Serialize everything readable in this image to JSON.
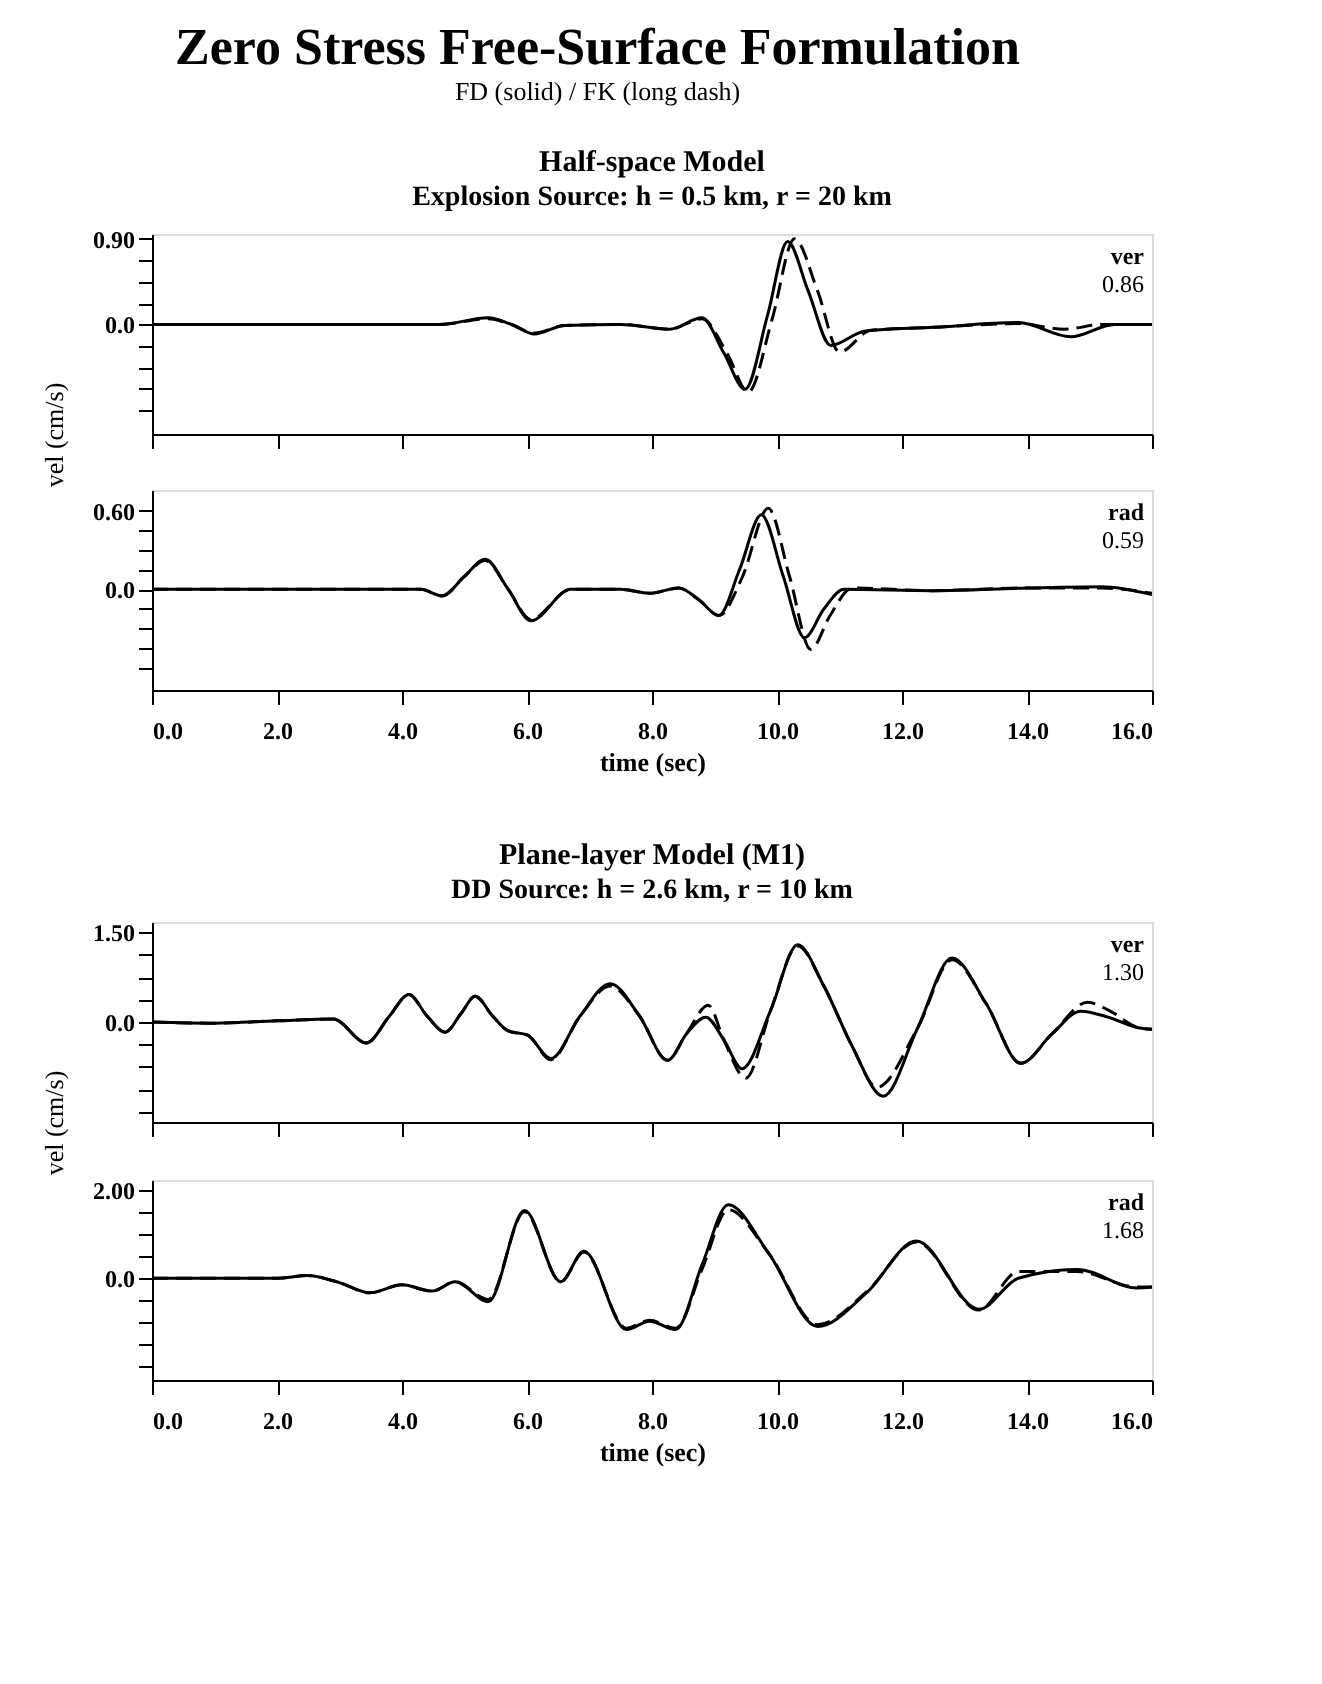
{
  "chart_data": [
    {
      "type": "line",
      "title": "Half-space Model",
      "subtitle": "Explosion Source: h = 0.5 km, r = 20 km",
      "ylabel": "vel (cm/s)",
      "annotations": [
        "Zero Stress Free-Surface Formulation",
        "FD (solid) / FK (long dash)",
        "ver",
        "0.86"
      ],
      "xlim": [
        0,
        16
      ],
      "xticks": [
        {
          "value": 0,
          "label": null
        },
        {
          "value": 2,
          "label": null
        },
        {
          "value": 4,
          "label": null
        },
        {
          "value": 6,
          "label": null
        },
        {
          "value": 8,
          "label": null
        },
        {
          "value": 10,
          "label": null
        },
        {
          "value": 12,
          "label": null
        },
        {
          "value": 14,
          "label": null
        },
        {
          "value": 16,
          "label": null
        }
      ],
      "ylim": [
        -1.15,
        0.95
      ],
      "yticks": [
        {
          "value": 0.9,
          "label": "0.90"
        },
        {
          "value": 0.675,
          "label": null
        },
        {
          "value": 0.45,
          "label": null
        },
        {
          "value": 0.225,
          "label": null
        },
        {
          "value": 0,
          "label": "0.0"
        },
        {
          "value": -0.225,
          "label": null
        },
        {
          "value": -0.45,
          "label": null
        },
        {
          "value": -0.675,
          "label": null
        },
        {
          "value": -0.9,
          "label": null
        }
      ],
      "tick_labels": "y",
      "grid": false,
      "marker": "none",
      "series": [
        {
          "color": "#000000",
          "line_style": "solid",
          "x": [
            0,
            2,
            4,
            4.6,
            5.38,
            5.75,
            6.12,
            6.6,
            7.5,
            8.28,
            8.8,
            9.15,
            9.49,
            9.85,
            10.17,
            10.5,
            10.86,
            11.4,
            12.5,
            13.86,
            14.7,
            15.4,
            16
          ],
          "values": [
            0,
            0,
            0,
            0,
            0.07,
            0,
            -0.1,
            -0.01,
            0,
            -0.05,
            0.07,
            -0.3,
            -0.68,
            0.1,
            0.87,
            0.35,
            -0.22,
            -0.07,
            -0.03,
            0.02,
            -0.13,
            0,
            0
          ]
        },
        {
          "color": "#000000",
          "line_style": "dashed",
          "x": [
            0,
            2,
            4,
            4.6,
            5.38,
            5.75,
            6.12,
            6.6,
            7.5,
            8.28,
            8.8,
            9.2,
            9.54,
            9.92,
            10.28,
            10.65,
            11.0,
            11.5,
            12.5,
            13.86,
            14.6,
            15.2,
            16
          ],
          "values": [
            0,
            0,
            0,
            0,
            0.06,
            0,
            -0.09,
            -0.01,
            0,
            -0.05,
            0.06,
            -0.3,
            -0.71,
            0.05,
            0.9,
            0.35,
            -0.29,
            -0.06,
            -0.03,
            0.01,
            -0.05,
            0,
            0
          ]
        }
      ]
    },
    {
      "type": "line",
      "xlabel": "time (sec)",
      "annotations": [
        "rad",
        "0.59"
      ],
      "xlim": [
        0,
        16
      ],
      "xticks": [
        {
          "value": 0,
          "label": "0.0"
        },
        {
          "value": 2,
          "label": "2.0"
        },
        {
          "value": 4,
          "label": "4.0"
        },
        {
          "value": 6,
          "label": "6.0"
        },
        {
          "value": 8,
          "label": "8.0"
        },
        {
          "value": 10,
          "label": "10.0"
        },
        {
          "value": 12,
          "label": "12.0"
        },
        {
          "value": 14,
          "label": "14.0"
        },
        {
          "value": 16,
          "label": "16.0"
        }
      ],
      "ylim": [
        -0.77,
        0.76
      ],
      "yticks": [
        {
          "value": 0.6,
          "label": "0.60"
        },
        {
          "value": 0.45,
          "label": null
        },
        {
          "value": 0.3,
          "label": null
        },
        {
          "value": 0.15,
          "label": null
        },
        {
          "value": 0,
          "label": "0.0"
        },
        {
          "value": -0.15,
          "label": null
        },
        {
          "value": -0.3,
          "label": null
        },
        {
          "value": -0.45,
          "label": null
        },
        {
          "value": -0.6,
          "label": null
        }
      ],
      "grid": false,
      "marker": "none",
      "series": [
        {
          "color": "#000000",
          "line_style": "solid",
          "x": [
            0,
            2,
            4,
            4.3,
            4.64,
            5.0,
            5.33,
            5.7,
            6.06,
            6.7,
            7.5,
            7.96,
            8.43,
            8.75,
            9.07,
            9.4,
            9.75,
            10.1,
            10.44,
            10.75,
            11.07,
            12.5,
            14.0,
            15.2,
            16
          ],
          "values": [
            0,
            0,
            0,
            0,
            -0.05,
            0.1,
            0.23,
            0.0,
            -0.24,
            0,
            0,
            -0.03,
            0.01,
            -0.08,
            -0.2,
            0.15,
            0.57,
            0.1,
            -0.37,
            -0.15,
            0,
            -0.01,
            0.01,
            0.02,
            -0.04
          ]
        },
        {
          "color": "#000000",
          "line_style": "dashed",
          "x": [
            0,
            2,
            4,
            4.3,
            4.64,
            5.0,
            5.33,
            5.7,
            6.06,
            6.7,
            7.5,
            7.96,
            8.43,
            8.75,
            9.07,
            9.45,
            9.86,
            10.2,
            10.54,
            10.85,
            11.2,
            12.5,
            14.0,
            15.2,
            16
          ],
          "values": [
            0,
            0,
            0,
            0,
            -0.05,
            0.1,
            0.22,
            0.0,
            -0.23,
            0,
            0,
            -0.03,
            0.01,
            -0.08,
            -0.2,
            0.1,
            0.62,
            0.1,
            -0.46,
            -0.2,
            0.01,
            -0.01,
            0.01,
            0.01,
            -0.03
          ]
        }
      ]
    },
    {
      "type": "line",
      "title": "Plane-layer Model (M1)",
      "subtitle": "DD Source: h = 2.6 km, r = 10 km",
      "ylabel": "vel (cm/s)",
      "annotations": [
        "ver",
        "1.30"
      ],
      "xlim": [
        0,
        16
      ],
      "xticks": [
        {
          "value": 0,
          "label": null
        },
        {
          "value": 2,
          "label": null
        },
        {
          "value": 4,
          "label": null
        },
        {
          "value": 6,
          "label": null
        },
        {
          "value": 8,
          "label": null
        },
        {
          "value": 10,
          "label": null
        },
        {
          "value": 12,
          "label": null
        },
        {
          "value": 14,
          "label": null
        },
        {
          "value": 16,
          "label": null
        }
      ],
      "ylim": [
        -1.67,
        1.67
      ],
      "yticks": [
        {
          "value": 1.5,
          "label": "1.50"
        },
        {
          "value": 1.125,
          "label": null
        },
        {
          "value": 0.75,
          "label": null
        },
        {
          "value": 0.375,
          "label": null
        },
        {
          "value": 0,
          "label": "0.0"
        },
        {
          "value": -0.375,
          "label": null
        },
        {
          "value": -0.75,
          "label": null
        },
        {
          "value": -1.125,
          "label": null
        },
        {
          "value": -1.5,
          "label": null
        }
      ],
      "tick_labels": "y",
      "grid": false,
      "marker": "none",
      "series": [
        {
          "color": "#000000",
          "line_style": "solid",
          "x": [
            0,
            1,
            2,
            2.9,
            3.43,
            3.8,
            4.11,
            4.4,
            4.69,
            4.95,
            5.17,
            5.45,
            5.7,
            6.01,
            6.38,
            6.85,
            7.33,
            7.8,
            8.25,
            8.55,
            8.86,
            9.15,
            9.44,
            9.9,
            10.33,
            10.75,
            11.2,
            11.7,
            12.25,
            12.8,
            13.35,
            13.9,
            14.4,
            14.86,
            15.3,
            15.8,
            16
          ],
          "values": [
            0,
            -0.02,
            0.02,
            0.05,
            -0.35,
            0.1,
            0.46,
            0.1,
            -0.17,
            0.15,
            0.43,
            0.1,
            -0.15,
            -0.22,
            -0.61,
            0.1,
            0.64,
            0.1,
            -0.64,
            -0.2,
            0.08,
            -0.3,
            -0.78,
            0.2,
            1.29,
            0.6,
            -0.4,
            -1.24,
            -0.1,
            1.07,
            0.3,
            -0.69,
            -0.2,
            0.18,
            0.08,
            -0.1,
            -0.12
          ]
        },
        {
          "color": "#000000",
          "line_style": "dashed",
          "x": [
            0,
            1,
            2,
            2.9,
            3.43,
            3.8,
            4.11,
            4.4,
            4.69,
            4.95,
            5.17,
            5.45,
            5.7,
            6.01,
            6.38,
            6.85,
            7.33,
            7.8,
            8.25,
            8.55,
            8.9,
            9.15,
            9.5,
            9.9,
            10.33,
            10.75,
            11.2,
            11.6,
            12.25,
            12.8,
            13.35,
            13.9,
            14.4,
            14.97,
            15.3,
            15.8,
            16
          ],
          "values": [
            0,
            -0.02,
            0.02,
            0.05,
            -0.35,
            0.1,
            0.46,
            0.1,
            -0.17,
            0.15,
            0.43,
            0.1,
            -0.15,
            -0.22,
            -0.63,
            0.1,
            0.6,
            0.1,
            -0.64,
            -0.2,
            0.28,
            -0.3,
            -0.94,
            0.2,
            1.27,
            0.6,
            -0.4,
            -1.09,
            -0.1,
            1.04,
            0.3,
            -0.69,
            -0.2,
            0.33,
            0.2,
            -0.1,
            -0.12
          ]
        }
      ]
    },
    {
      "type": "line",
      "xlabel": "time (sec)",
      "annotations": [
        "rad",
        "1.68"
      ],
      "xlim": [
        0,
        16
      ],
      "xticks": [
        {
          "value": 0,
          "label": "0.0"
        },
        {
          "value": 2,
          "label": "2.0"
        },
        {
          "value": 4,
          "label": "4.0"
        },
        {
          "value": 6,
          "label": "6.0"
        },
        {
          "value": 8,
          "label": "8.0"
        },
        {
          "value": 10,
          "label": "10.0"
        },
        {
          "value": 12,
          "label": "12.0"
        },
        {
          "value": 14,
          "label": "14.0"
        },
        {
          "value": 16,
          "label": "16.0"
        }
      ],
      "ylim": [
        -2.3,
        2.22
      ],
      "yticks": [
        {
          "value": 2.0,
          "label": "2.00"
        },
        {
          "value": 1.5,
          "label": null
        },
        {
          "value": 1.0,
          "label": null
        },
        {
          "value": 0.5,
          "label": null
        },
        {
          "value": 0,
          "label": "0.0"
        },
        {
          "value": -0.5,
          "label": null
        },
        {
          "value": -1.0,
          "label": null
        },
        {
          "value": -1.5,
          "label": null
        },
        {
          "value": -2.0,
          "label": null
        }
      ],
      "grid": false,
      "marker": "none",
      "series": [
        {
          "color": "#000000",
          "line_style": "solid",
          "x": [
            0,
            1,
            2,
            2.48,
            3.0,
            3.48,
            4.0,
            4.48,
            4.85,
            5.38,
            5.96,
            6.54,
            6.91,
            7.59,
            7.96,
            8.38,
            8.8,
            9.22,
            9.86,
            10.65,
            11.44,
            12.23,
            13.23,
            13.86,
            14.8,
            15.76,
            16
          ],
          "values": [
            0,
            0,
            0,
            0.06,
            -0.1,
            -0.33,
            -0.15,
            -0.29,
            -0.08,
            -0.53,
            1.53,
            -0.08,
            0.61,
            -1.16,
            -0.97,
            -1.16,
            0.3,
            1.66,
            0.58,
            -1.09,
            -0.32,
            0.84,
            -0.7,
            0,
            0.2,
            -0.22,
            -0.2
          ]
        },
        {
          "color": "#000000",
          "line_style": "dashed",
          "x": [
            0,
            1,
            2,
            2.48,
            3.0,
            3.48,
            4.0,
            4.48,
            4.85,
            5.38,
            5.96,
            6.54,
            6.91,
            7.59,
            7.96,
            8.38,
            8.8,
            9.22,
            9.86,
            10.65,
            11.44,
            12.23,
            13.23,
            13.86,
            14.8,
            15.76,
            16
          ],
          "values": [
            0,
            0,
            0,
            0.06,
            -0.1,
            -0.33,
            -0.15,
            -0.29,
            -0.08,
            -0.48,
            1.5,
            -0.08,
            0.59,
            -1.13,
            -0.95,
            -1.13,
            0.2,
            1.55,
            0.58,
            -1.05,
            -0.3,
            0.82,
            -0.72,
            0.15,
            0.15,
            -0.2,
            -0.2
          ]
        }
      ]
    }
  ]
}
